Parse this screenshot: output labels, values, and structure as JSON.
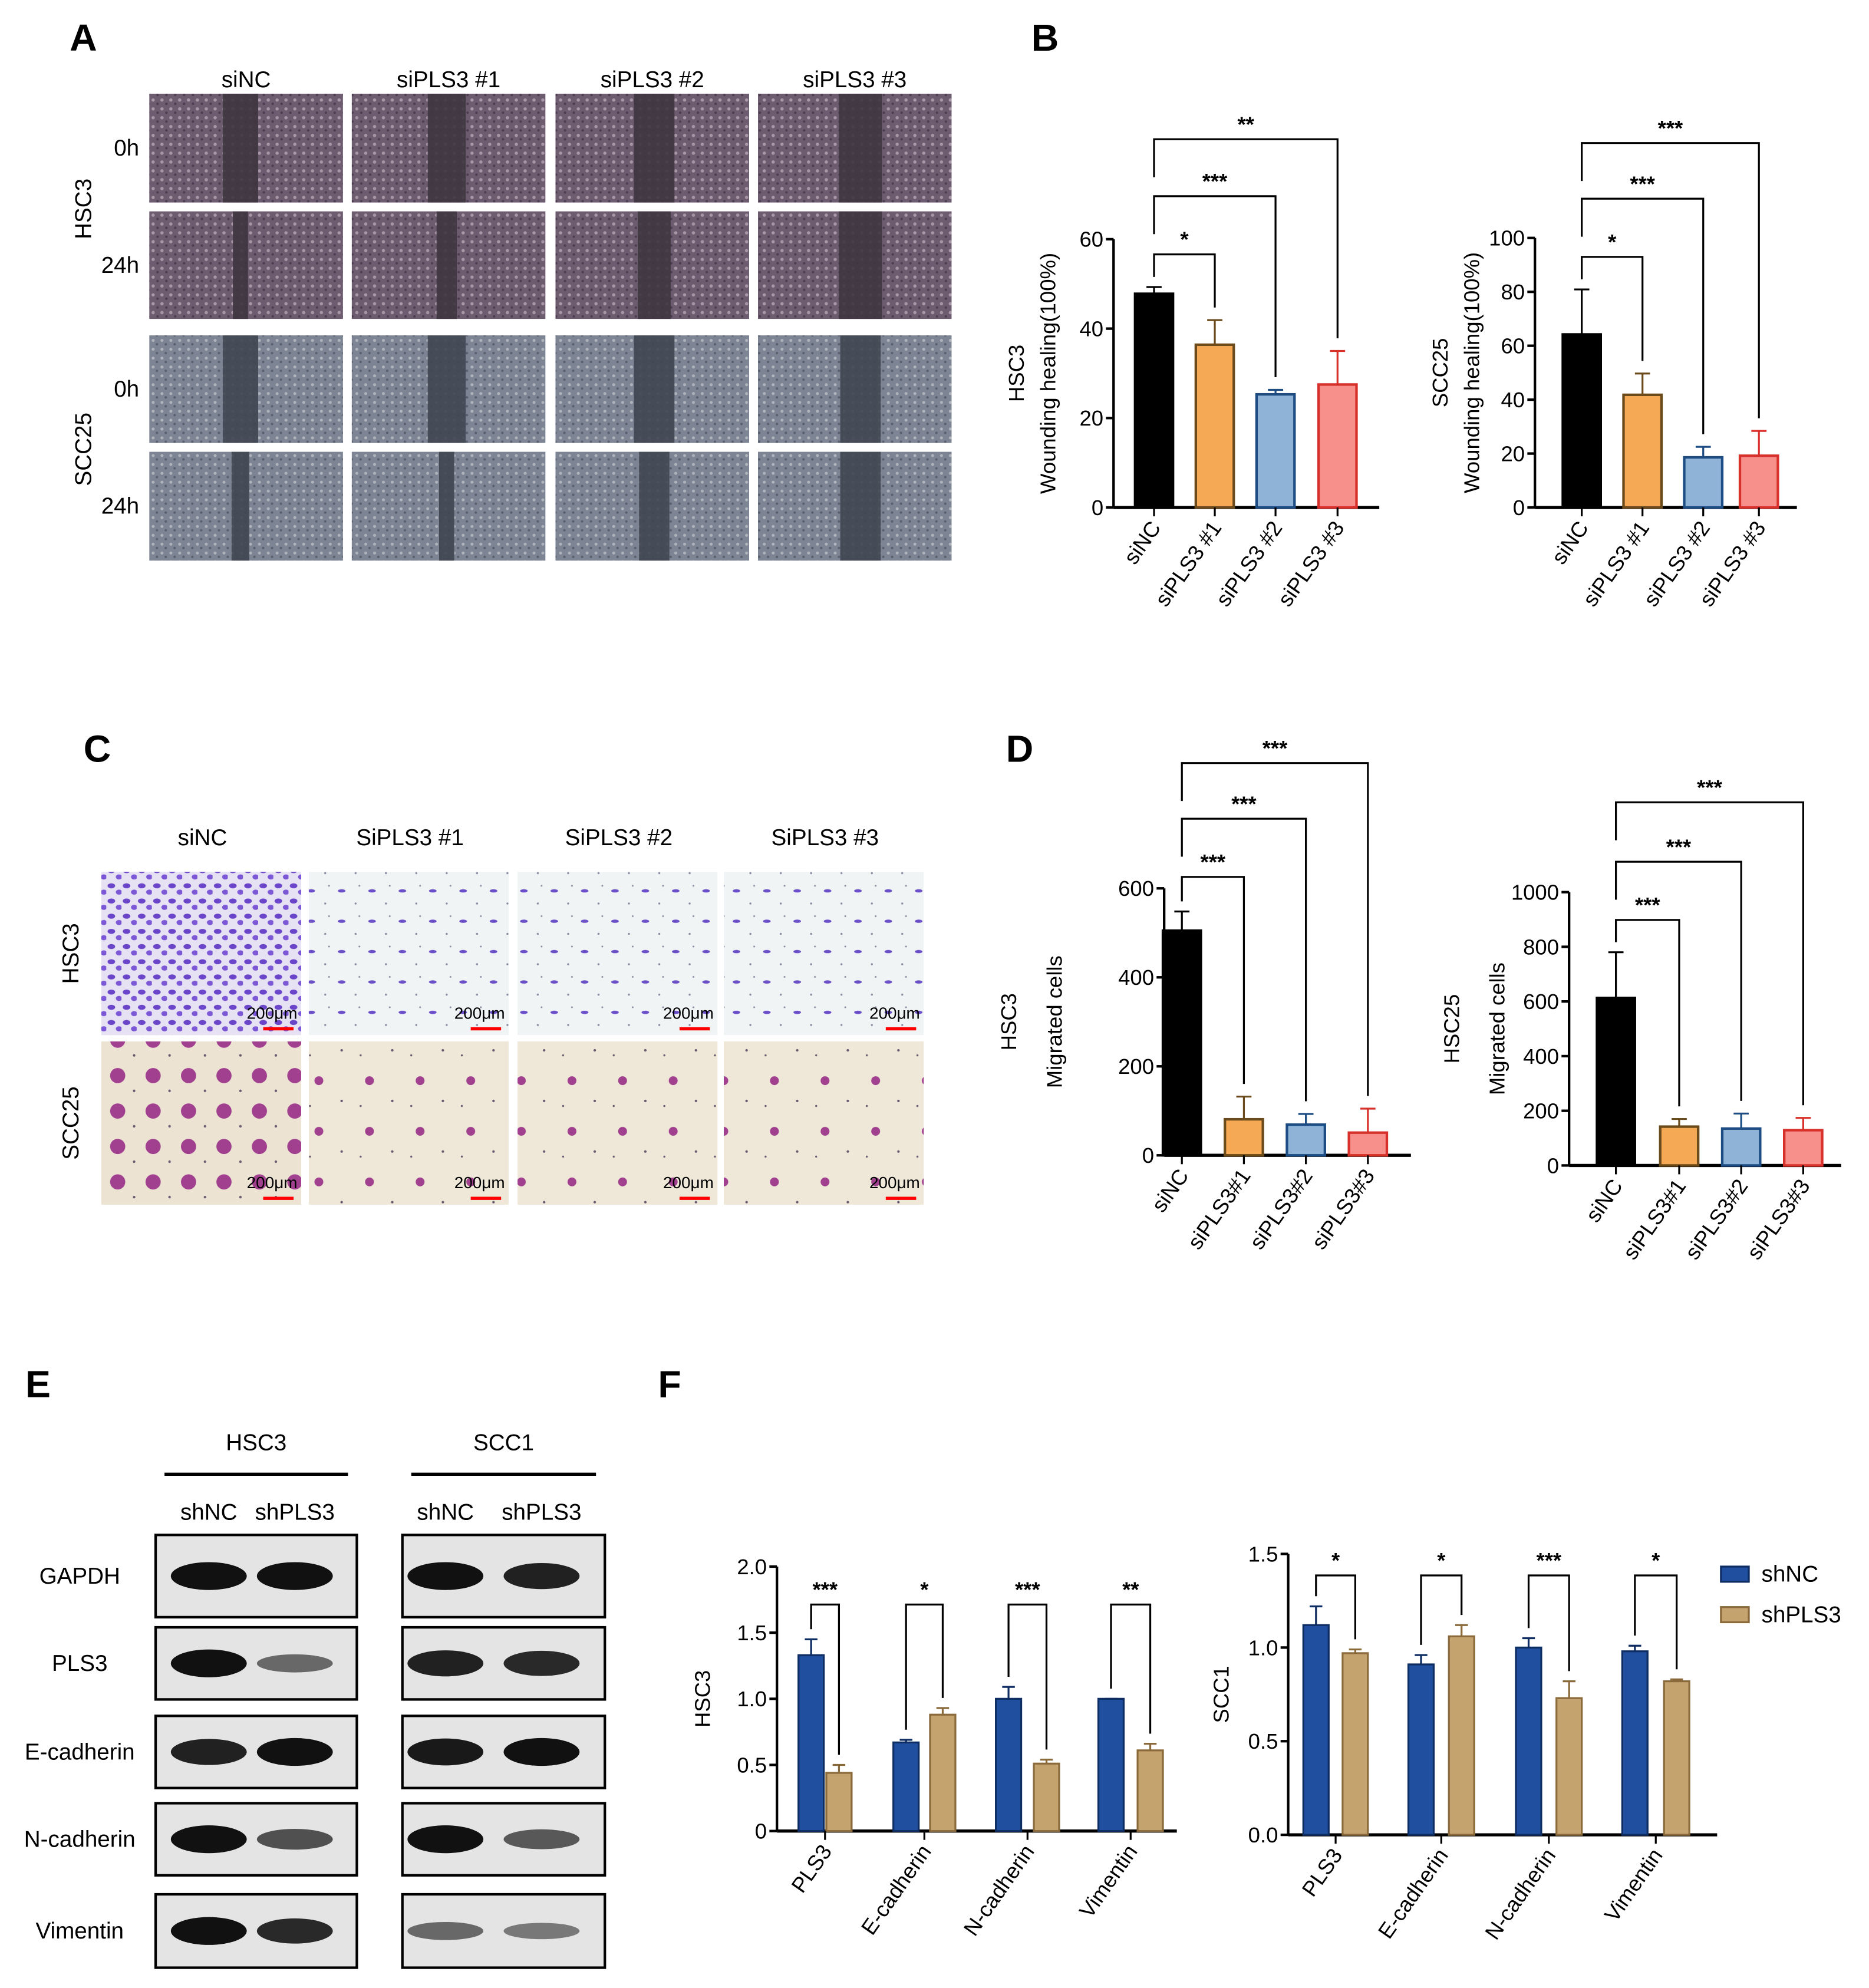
{
  "panel_letters": {
    "A": "A",
    "B": "B",
    "C": "C",
    "D": "D",
    "E": "E",
    "F": "F"
  },
  "panel_a": {
    "columns": [
      "siNC",
      "siPLS3 #1",
      "siPLS3 #2",
      "siPLS3 #3"
    ],
    "cell_lines": [
      "HSC3",
      "SCC25"
    ],
    "timepoints": [
      "0h",
      "24h"
    ]
  },
  "panel_c": {
    "columns": [
      "siNC",
      "SiPLS3 #1",
      "SiPLS3 #2",
      "SiPLS3 #3"
    ],
    "rows": [
      "HSC3",
      "SCC25"
    ],
    "scale_bar": "200μm",
    "scale_bar_color": "#ff0000"
  },
  "panel_e": {
    "groups": [
      {
        "name": "HSC3",
        "lanes": [
          "shNC",
          "shPLS3"
        ]
      },
      {
        "name": "SCC1",
        "lanes": [
          "shNC",
          "shPLS3"
        ]
      }
    ],
    "proteins": [
      "GAPDH",
      "PLS3",
      "E-cadherin",
      "N-cadherin",
      "Vimentin"
    ],
    "band_intensity": {
      "HSC3": [
        [
          1,
          1
        ],
        [
          1,
          0.45
        ],
        [
          0.9,
          1
        ],
        [
          1,
          0.6
        ],
        [
          1,
          0.85
        ]
      ],
      "SCC1": [
        [
          1,
          0.9
        ],
        [
          0.9,
          0.85
        ],
        [
          0.95,
          1
        ],
        [
          1,
          0.55
        ],
        [
          0.45,
          0.35
        ]
      ]
    }
  },
  "chart_data": [
    {
      "panel": "B",
      "type": "bar",
      "ylabel": [
        "HSC3",
        "Wounding healing(100%)"
      ],
      "categories": [
        "siNC",
        "siPLS3 #1",
        "siPLS3 #2",
        "siPLS3 #3"
      ],
      "values": [
        47.8,
        36.4,
        25.3,
        27.5
      ],
      "error_upper": [
        49.3,
        41.9,
        26.3,
        35.0
      ],
      "ylim": [
        0,
        60
      ],
      "yticks": [
        0,
        20,
        40,
        60
      ],
      "colors": [
        "#000000",
        "#f5a955",
        "#8fb3d6",
        "#f7908b"
      ],
      "edge_colors": [
        "#000000",
        "#6b4a1c",
        "#1d4d83",
        "#d8302a"
      ],
      "significance": [
        {
          "compare": [
            "siNC",
            "siPLS3 #1"
          ],
          "label": "*"
        },
        {
          "compare": [
            "siNC",
            "siPLS3 #2"
          ],
          "label": "***"
        },
        {
          "compare": [
            "siNC",
            "siPLS3 #3"
          ],
          "label": "**"
        }
      ]
    },
    {
      "panel": "B",
      "type": "bar",
      "ylabel": [
        "SCC25",
        "Wounding healing(100%)"
      ],
      "categories": [
        "siNC",
        "siPLS3 #1",
        "siPLS3 #2",
        "siPLS3 #3"
      ],
      "values": [
        64.2,
        41.8,
        18.6,
        19.2
      ],
      "error_upper": [
        80.9,
        49.7,
        22.5,
        28.4
      ],
      "ylim": [
        0,
        100
      ],
      "yticks": [
        0,
        20,
        40,
        60,
        80,
        100
      ],
      "colors": [
        "#000000",
        "#f5a955",
        "#8fb3d6",
        "#f7908b"
      ],
      "edge_colors": [
        "#000000",
        "#6b4a1c",
        "#1d4d83",
        "#d8302a"
      ],
      "significance": [
        {
          "compare": [
            "siNC",
            "siPLS3 #1"
          ],
          "label": "*"
        },
        {
          "compare": [
            "siNC",
            "siPLS3 #2"
          ],
          "label": "***"
        },
        {
          "compare": [
            "siNC",
            "siPLS3 #3"
          ],
          "label": "***"
        }
      ]
    },
    {
      "panel": "D",
      "type": "bar",
      "ylabel": [
        "HSC3",
        "Migrated cells"
      ],
      "categories": [
        "siNC",
        "siPLS3#1",
        "siPLS3#2",
        "siPLS3#3"
      ],
      "values": [
        505,
        81,
        69,
        51
      ],
      "error_upper": [
        548,
        132,
        93,
        105
      ],
      "ylim": [
        0,
        600
      ],
      "yticks": [
        0,
        200,
        400,
        600
      ],
      "colors": [
        "#000000",
        "#f5a955",
        "#8fb3d6",
        "#f7908b"
      ],
      "edge_colors": [
        "#000000",
        "#6b4a1c",
        "#1d4d83",
        "#d8302a"
      ],
      "significance": [
        {
          "compare": [
            "siNC",
            "siPLS3#1"
          ],
          "label": "***"
        },
        {
          "compare": [
            "siNC",
            "siPLS3#2"
          ],
          "label": "***"
        },
        {
          "compare": [
            "siNC",
            "siPLS3#3"
          ],
          "label": "***"
        }
      ]
    },
    {
      "panel": "D",
      "type": "bar",
      "ylabel": [
        "HSC25",
        "Migrated cells"
      ],
      "categories": [
        "siNC",
        "siPLS3#1",
        "siPLS3#2",
        "siPLS3#3"
      ],
      "values": [
        613,
        142,
        135,
        129
      ],
      "error_upper": [
        780,
        170,
        190,
        174
      ],
      "ylim": [
        0,
        1000
      ],
      "yticks": [
        0,
        200,
        400,
        600,
        800,
        1000
      ],
      "colors": [
        "#000000",
        "#f5a955",
        "#8fb3d6",
        "#f7908b"
      ],
      "edge_colors": [
        "#000000",
        "#6b4a1c",
        "#1d4d83",
        "#d8302a"
      ],
      "significance": [
        {
          "compare": [
            "siNC",
            "siPLS3#1"
          ],
          "label": "***"
        },
        {
          "compare": [
            "siNC",
            "siPLS3#2"
          ],
          "label": "***"
        },
        {
          "compare": [
            "siNC",
            "siPLS3#3"
          ],
          "label": "***"
        }
      ]
    },
    {
      "panel": "F",
      "type": "grouped-bar",
      "ylabel": [
        "HSC3"
      ],
      "categories": [
        "PLS3",
        "E-cadherin",
        "N-cadherin",
        "Vimentin"
      ],
      "series": [
        {
          "name": "shNC",
          "values": [
            1.33,
            0.67,
            1.0,
            1.0
          ],
          "error_upper": [
            1.45,
            0.69,
            1.09,
            1.0
          ]
        },
        {
          "name": "shPLS3",
          "values": [
            0.44,
            0.88,
            0.51,
            0.61
          ],
          "error_upper": [
            0.5,
            0.93,
            0.54,
            0.66
          ]
        }
      ],
      "ylim": [
        0,
        2.0
      ],
      "yticks": [
        "0",
        "0.5",
        "1.0",
        "1.5",
        "2.0"
      ],
      "colors": [
        "#1f4f9e",
        "#c5a36f"
      ],
      "edge_colors": [
        "#0e2d63",
        "#8a6a3a"
      ],
      "significance": [
        "***",
        "*",
        "***",
        "**"
      ]
    },
    {
      "panel": "F",
      "type": "grouped-bar",
      "ylabel": [
        "SCC1"
      ],
      "categories": [
        "PLS3",
        "E-cadherin",
        "N-cadherin",
        "Vimentin"
      ],
      "series": [
        {
          "name": "shNC",
          "values": [
            1.12,
            0.91,
            1.0,
            0.98
          ],
          "error_upper": [
            1.22,
            0.96,
            1.05,
            1.01
          ]
        },
        {
          "name": "shPLS3",
          "values": [
            0.97,
            1.06,
            0.73,
            0.82
          ],
          "error_upper": [
            0.99,
            1.12,
            0.82,
            0.83
          ]
        }
      ],
      "ylim": [
        0,
        1.5
      ],
      "yticks": [
        "0.0",
        "0.5",
        "1.0",
        "1.5"
      ],
      "colors": [
        "#1f4f9e",
        "#c5a36f"
      ],
      "edge_colors": [
        "#0e2d63",
        "#8a6a3a"
      ],
      "significance": [
        "*",
        "*",
        "***",
        "*"
      ],
      "legend": [
        "shNC",
        "shPLS3"
      ],
      "legend_position": "right"
    }
  ]
}
